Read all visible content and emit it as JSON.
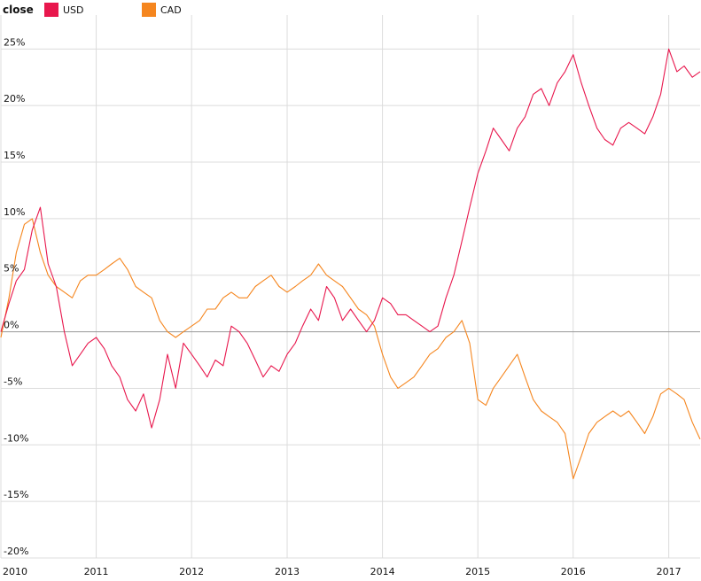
{
  "chart_data": {
    "type": "line",
    "legend": {
      "title": "close",
      "placement": "top-left"
    },
    "x_axis": {
      "ticks": [
        "2010",
        "2011",
        "2012",
        "2013",
        "2014",
        "2015",
        "2016",
        "2017"
      ],
      "range": [
        "2010-01-01",
        "2017-05-01"
      ]
    },
    "y_axis": {
      "ticks": [
        "-20%",
        "-15%",
        "-10%",
        "-5%",
        "0%",
        "5%",
        "10%",
        "15%",
        "20%",
        "25%"
      ],
      "range": [
        -20,
        28
      ],
      "unit": "%"
    },
    "grid": true,
    "series": [
      {
        "name": "USD",
        "color": "#e8174d",
        "points": [
          [
            "2010-01-01",
            0
          ],
          [
            "2010-02-01",
            2.5
          ],
          [
            "2010-03-01",
            4.5
          ],
          [
            "2010-04-01",
            5.5
          ],
          [
            "2010-05-01",
            9
          ],
          [
            "2010-06-01",
            11
          ],
          [
            "2010-07-01",
            6
          ],
          [
            "2010-08-01",
            4
          ],
          [
            "2010-09-01",
            0
          ],
          [
            "2010-10-01",
            -3
          ],
          [
            "2010-11-01",
            -2
          ],
          [
            "2010-12-01",
            -1
          ],
          [
            "2011-01-01",
            -0.5
          ],
          [
            "2011-02-01",
            -1.5
          ],
          [
            "2011-03-01",
            -3
          ],
          [
            "2011-04-01",
            -4
          ],
          [
            "2011-05-01",
            -6
          ],
          [
            "2011-06-01",
            -7
          ],
          [
            "2011-07-01",
            -5.5
          ],
          [
            "2011-08-01",
            -8.5
          ],
          [
            "2011-09-01",
            -6
          ],
          [
            "2011-10-01",
            -2
          ],
          [
            "2011-11-01",
            -5
          ],
          [
            "2011-12-01",
            -1
          ],
          [
            "2012-01-01",
            -2
          ],
          [
            "2012-02-01",
            -3
          ],
          [
            "2012-03-01",
            -4
          ],
          [
            "2012-04-01",
            -2.5
          ],
          [
            "2012-05-01",
            -3
          ],
          [
            "2012-06-01",
            0.5
          ],
          [
            "2012-07-01",
            0
          ],
          [
            "2012-08-01",
            -1
          ],
          [
            "2012-09-01",
            -2.5
          ],
          [
            "2012-10-01",
            -4
          ],
          [
            "2012-11-01",
            -3
          ],
          [
            "2012-12-01",
            -3.5
          ],
          [
            "2013-01-01",
            -2
          ],
          [
            "2013-02-01",
            -1
          ],
          [
            "2013-03-01",
            0.5
          ],
          [
            "2013-04-01",
            2
          ],
          [
            "2013-05-01",
            1
          ],
          [
            "2013-06-01",
            4
          ],
          [
            "2013-07-01",
            3
          ],
          [
            "2013-08-01",
            1
          ],
          [
            "2013-09-01",
            2
          ],
          [
            "2013-10-01",
            1
          ],
          [
            "2013-11-01",
            0
          ],
          [
            "2013-12-01",
            1
          ],
          [
            "2014-01-01",
            3
          ],
          [
            "2014-02-01",
            2.5
          ],
          [
            "2014-03-01",
            1.5
          ],
          [
            "2014-04-01",
            1.5
          ],
          [
            "2014-05-01",
            1
          ],
          [
            "2014-06-01",
            0.5
          ],
          [
            "2014-07-01",
            0
          ],
          [
            "2014-08-01",
            0.5
          ],
          [
            "2014-09-01",
            3
          ],
          [
            "2014-10-01",
            5
          ],
          [
            "2014-11-01",
            8
          ],
          [
            "2014-12-01",
            11
          ],
          [
            "2015-01-01",
            14
          ],
          [
            "2015-02-01",
            16
          ],
          [
            "2015-03-01",
            18
          ],
          [
            "2015-04-01",
            17
          ],
          [
            "2015-05-01",
            16
          ],
          [
            "2015-06-01",
            18
          ],
          [
            "2015-07-01",
            19
          ],
          [
            "2015-08-01",
            21
          ],
          [
            "2015-09-01",
            21.5
          ],
          [
            "2015-10-01",
            20
          ],
          [
            "2015-11-01",
            22
          ],
          [
            "2015-12-01",
            23
          ],
          [
            "2016-01-01",
            24.5
          ],
          [
            "2016-02-01",
            22
          ],
          [
            "2016-03-01",
            20
          ],
          [
            "2016-04-01",
            18
          ],
          [
            "2016-05-01",
            17
          ],
          [
            "2016-06-01",
            16.5
          ],
          [
            "2016-07-01",
            18
          ],
          [
            "2016-08-01",
            18.5
          ],
          [
            "2016-09-01",
            18
          ],
          [
            "2016-10-01",
            17.5
          ],
          [
            "2016-11-01",
            19
          ],
          [
            "2016-12-01",
            21
          ],
          [
            "2017-01-01",
            25
          ],
          [
            "2017-02-01",
            23
          ],
          [
            "2017-03-01",
            23.5
          ],
          [
            "2017-04-01",
            22.5
          ],
          [
            "2017-05-01",
            23
          ]
        ]
      },
      {
        "name": "CAD",
        "color": "#f5861f",
        "points": [
          [
            "2010-01-01",
            -0.5
          ],
          [
            "2010-02-01",
            3
          ],
          [
            "2010-03-01",
            7
          ],
          [
            "2010-04-01",
            9.5
          ],
          [
            "2010-05-01",
            10
          ],
          [
            "2010-06-01",
            7
          ],
          [
            "2010-07-01",
            5
          ],
          [
            "2010-08-01",
            4
          ],
          [
            "2010-09-01",
            3.5
          ],
          [
            "2010-10-01",
            3
          ],
          [
            "2010-11-01",
            4.5
          ],
          [
            "2010-12-01",
            5
          ],
          [
            "2011-01-01",
            5
          ],
          [
            "2011-02-01",
            5.5
          ],
          [
            "2011-03-01",
            6
          ],
          [
            "2011-04-01",
            6.5
          ],
          [
            "2011-05-01",
            5.5
          ],
          [
            "2011-06-01",
            4
          ],
          [
            "2011-07-01",
            3.5
          ],
          [
            "2011-08-01",
            3
          ],
          [
            "2011-09-01",
            1
          ],
          [
            "2011-10-01",
            0
          ],
          [
            "2011-11-01",
            -0.5
          ],
          [
            "2011-12-01",
            0
          ],
          [
            "2012-01-01",
            0.5
          ],
          [
            "2012-02-01",
            1
          ],
          [
            "2012-03-01",
            2
          ],
          [
            "2012-04-01",
            2
          ],
          [
            "2012-05-01",
            3
          ],
          [
            "2012-06-01",
            3.5
          ],
          [
            "2012-07-01",
            3
          ],
          [
            "2012-08-01",
            3
          ],
          [
            "2012-09-01",
            4
          ],
          [
            "2012-10-01",
            4.5
          ],
          [
            "2012-11-01",
            5
          ],
          [
            "2012-12-01",
            4
          ],
          [
            "2013-01-01",
            3.5
          ],
          [
            "2013-02-01",
            4
          ],
          [
            "2013-03-01",
            4.5
          ],
          [
            "2013-04-01",
            5
          ],
          [
            "2013-05-01",
            6
          ],
          [
            "2013-06-01",
            5
          ],
          [
            "2013-07-01",
            4.5
          ],
          [
            "2013-08-01",
            4
          ],
          [
            "2013-09-01",
            3
          ],
          [
            "2013-10-01",
            2
          ],
          [
            "2013-11-01",
            1.5
          ],
          [
            "2013-12-01",
            0.5
          ],
          [
            "2014-01-01",
            -2
          ],
          [
            "2014-02-01",
            -4
          ],
          [
            "2014-03-01",
            -5
          ],
          [
            "2014-04-01",
            -4.5
          ],
          [
            "2014-05-01",
            -4
          ],
          [
            "2014-06-01",
            -3
          ],
          [
            "2014-07-01",
            -2
          ],
          [
            "2014-08-01",
            -1.5
          ],
          [
            "2014-09-01",
            -0.5
          ],
          [
            "2014-10-01",
            0
          ],
          [
            "2014-11-01",
            1
          ],
          [
            "2014-12-01",
            -1
          ],
          [
            "2015-01-01",
            -6
          ],
          [
            "2015-02-01",
            -6.5
          ],
          [
            "2015-03-01",
            -5
          ],
          [
            "2015-04-01",
            -4
          ],
          [
            "2015-05-01",
            -3
          ],
          [
            "2015-06-01",
            -2
          ],
          [
            "2015-07-01",
            -4
          ],
          [
            "2015-08-01",
            -6
          ],
          [
            "2015-09-01",
            -7
          ],
          [
            "2015-10-01",
            -7.5
          ],
          [
            "2015-11-01",
            -8
          ],
          [
            "2015-12-01",
            -9
          ],
          [
            "2016-01-01",
            -13
          ],
          [
            "2016-02-01",
            -11
          ],
          [
            "2016-03-01",
            -9
          ],
          [
            "2016-04-01",
            -8
          ],
          [
            "2016-05-01",
            -7.5
          ],
          [
            "2016-06-01",
            -7
          ],
          [
            "2016-07-01",
            -7.5
          ],
          [
            "2016-08-01",
            -7
          ],
          [
            "2016-09-01",
            -8
          ],
          [
            "2016-10-01",
            -9
          ],
          [
            "2016-11-01",
            -7.5
          ],
          [
            "2016-12-01",
            -5.5
          ],
          [
            "2017-01-01",
            -5
          ],
          [
            "2017-02-01",
            -5.5
          ],
          [
            "2017-03-01",
            -6
          ],
          [
            "2017-04-01",
            -8
          ],
          [
            "2017-05-01",
            -9.5
          ]
        ]
      }
    ]
  }
}
